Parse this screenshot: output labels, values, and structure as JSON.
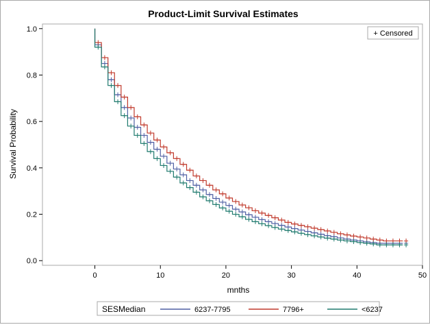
{
  "chart_data": {
    "type": "line",
    "step": true,
    "title": "Product-Limit Survival Estimates",
    "xlabel": "mnths",
    "ylabel": "Survival Probability",
    "xlim": [
      -8,
      50
    ],
    "ylim": [
      -0.02,
      1.02
    ],
    "x_ticks": [
      0,
      10,
      20,
      30,
      40,
      50
    ],
    "y_ticks": [
      0.0,
      0.2,
      0.4,
      0.6,
      0.8,
      1.0
    ],
    "x_tick_labels": [
      "0",
      "10",
      "20",
      "30",
      "40",
      "50"
    ],
    "y_tick_labels": [
      "0.0",
      "0.2",
      "0.4",
      "0.6",
      "0.8",
      "1.0"
    ],
    "grid": false,
    "legend": {
      "title": "SESMedian",
      "placement": "bottom",
      "censored_label": "+ Censored",
      "censored_placement": "top-right"
    },
    "series": [
      {
        "name": "6237-7795",
        "color": "#4f5fa3",
        "points": [
          [
            0,
            1.0
          ],
          [
            0,
            0.93
          ],
          [
            1,
            0.85
          ],
          [
            2,
            0.78
          ],
          [
            3,
            0.715
          ],
          [
            4,
            0.66
          ],
          [
            5,
            0.615
          ],
          [
            6,
            0.575
          ],
          [
            7,
            0.54
          ],
          [
            8,
            0.51
          ],
          [
            9,
            0.48
          ],
          [
            10,
            0.45
          ],
          [
            11,
            0.42
          ],
          [
            12,
            0.395
          ],
          [
            13,
            0.37
          ],
          [
            14,
            0.345
          ],
          [
            15,
            0.325
          ],
          [
            16,
            0.305
          ],
          [
            17,
            0.285
          ],
          [
            18,
            0.268
          ],
          [
            19,
            0.252
          ],
          [
            20,
            0.238
          ],
          [
            21,
            0.222
          ],
          [
            22,
            0.21
          ],
          [
            23,
            0.198
          ],
          [
            24,
            0.187
          ],
          [
            25,
            0.177
          ],
          [
            26,
            0.168
          ],
          [
            27,
            0.16
          ],
          [
            28,
            0.152
          ],
          [
            29,
            0.145
          ],
          [
            30,
            0.138
          ],
          [
            31,
            0.132
          ],
          [
            32,
            0.126
          ],
          [
            33,
            0.12
          ],
          [
            34,
            0.114
          ],
          [
            35,
            0.108
          ],
          [
            36,
            0.103
          ],
          [
            37,
            0.098
          ],
          [
            38,
            0.093
          ],
          [
            39,
            0.089
          ],
          [
            40,
            0.085
          ],
          [
            41,
            0.081
          ],
          [
            42,
            0.078
          ],
          [
            43,
            0.075
          ],
          [
            44,
            0.075
          ],
          [
            45,
            0.075
          ],
          [
            46,
            0.075
          ],
          [
            47,
            0.075
          ]
        ]
      },
      {
        "name": "7796+",
        "color": "#c0392b",
        "points": [
          [
            0,
            1.0
          ],
          [
            0,
            0.94
          ],
          [
            1,
            0.875
          ],
          [
            2,
            0.81
          ],
          [
            3,
            0.755
          ],
          [
            4,
            0.705
          ],
          [
            5,
            0.66
          ],
          [
            6,
            0.62
          ],
          [
            7,
            0.585
          ],
          [
            8,
            0.55
          ],
          [
            9,
            0.52
          ],
          [
            10,
            0.49
          ],
          [
            11,
            0.465
          ],
          [
            12,
            0.44
          ],
          [
            13,
            0.415
          ],
          [
            14,
            0.39
          ],
          [
            15,
            0.365
          ],
          [
            16,
            0.345
          ],
          [
            17,
            0.325
          ],
          [
            18,
            0.305
          ],
          [
            19,
            0.288
          ],
          [
            20,
            0.27
          ],
          [
            21,
            0.255
          ],
          [
            22,
            0.24
          ],
          [
            23,
            0.228
          ],
          [
            24,
            0.215
          ],
          [
            25,
            0.205
          ],
          [
            26,
            0.195
          ],
          [
            27,
            0.185
          ],
          [
            28,
            0.175
          ],
          [
            29,
            0.165
          ],
          [
            30,
            0.158
          ],
          [
            31,
            0.152
          ],
          [
            32,
            0.146
          ],
          [
            33,
            0.14
          ],
          [
            34,
            0.134
          ],
          [
            35,
            0.128
          ],
          [
            36,
            0.122
          ],
          [
            37,
            0.116
          ],
          [
            38,
            0.111
          ],
          [
            39,
            0.106
          ],
          [
            40,
            0.102
          ],
          [
            41,
            0.098
          ],
          [
            42,
            0.093
          ],
          [
            43,
            0.089
          ],
          [
            44,
            0.085
          ],
          [
            45,
            0.085
          ],
          [
            46,
            0.085
          ],
          [
            47,
            0.085
          ]
        ]
      },
      {
        "name": "<6237",
        "color": "#1f7a6e",
        "points": [
          [
            0,
            1.0
          ],
          [
            0,
            0.92
          ],
          [
            1,
            0.835
          ],
          [
            2,
            0.755
          ],
          [
            3,
            0.685
          ],
          [
            4,
            0.625
          ],
          [
            5,
            0.58
          ],
          [
            6,
            0.54
          ],
          [
            7,
            0.505
          ],
          [
            8,
            0.47
          ],
          [
            9,
            0.44
          ],
          [
            10,
            0.41
          ],
          [
            11,
            0.385
          ],
          [
            12,
            0.36
          ],
          [
            13,
            0.335
          ],
          [
            14,
            0.315
          ],
          [
            15,
            0.295
          ],
          [
            16,
            0.275
          ],
          [
            17,
            0.258
          ],
          [
            18,
            0.242
          ],
          [
            19,
            0.227
          ],
          [
            20,
            0.213
          ],
          [
            21,
            0.2
          ],
          [
            22,
            0.189
          ],
          [
            23,
            0.178
          ],
          [
            24,
            0.168
          ],
          [
            25,
            0.159
          ],
          [
            26,
            0.151
          ],
          [
            27,
            0.143
          ],
          [
            28,
            0.136
          ],
          [
            29,
            0.13
          ],
          [
            30,
            0.124
          ],
          [
            31,
            0.118
          ],
          [
            32,
            0.112
          ],
          [
            33,
            0.107
          ],
          [
            34,
            0.102
          ],
          [
            35,
            0.097
          ],
          [
            36,
            0.093
          ],
          [
            37,
            0.089
          ],
          [
            38,
            0.085
          ],
          [
            39,
            0.082
          ],
          [
            40,
            0.078
          ],
          [
            41,
            0.075
          ],
          [
            42,
            0.072
          ],
          [
            43,
            0.068
          ],
          [
            44,
            0.068
          ],
          [
            45,
            0.068
          ],
          [
            46,
            0.068
          ],
          [
            47,
            0.068
          ]
        ]
      }
    ]
  }
}
